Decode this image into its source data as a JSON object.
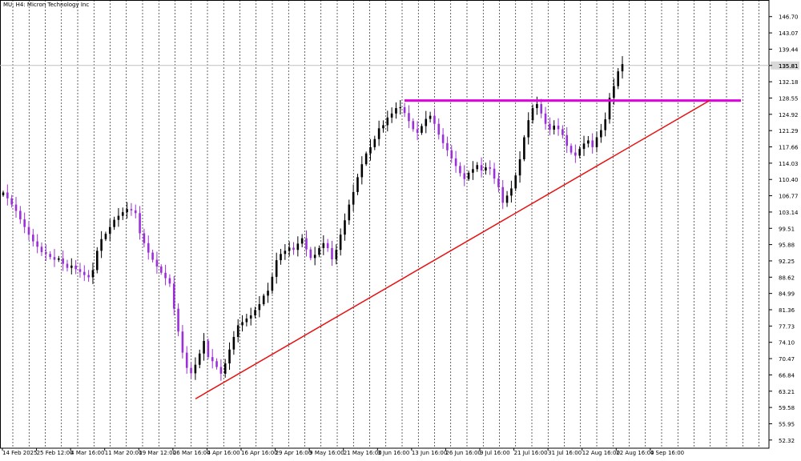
{
  "symbol_title": "MU, H4:  Micron Technology Inc",
  "colors": {
    "background": "#ffffff",
    "bull_candle": "#000000",
    "bear_candle": "#9b30d9",
    "grid": "#000000",
    "resistance": "#e000e0",
    "trendline": "#e81010",
    "price_line": "#c0c0c0"
  },
  "chart_data": {
    "type": "candlestick",
    "timeframe": "H4",
    "title": "MU, H4:  Micron Technology Inc",
    "grid": "vertical dotted",
    "ylim": [
      50.5,
      150.4
    ],
    "y_ticks": [
      "146.70",
      "143.07",
      "139.44",
      "135.81",
      "132.18",
      "128.55",
      "124.92",
      "121.29",
      "117.66",
      "114.03",
      "110.40",
      "106.77",
      "103.14",
      "99.51",
      "95.88",
      "92.25",
      "88.62",
      "84.99",
      "81.36",
      "77.73",
      "74.10",
      "70.47",
      "66.84",
      "63.21",
      "59.58",
      "55.95",
      "52.32"
    ],
    "x_ticks": [
      "14 Feb 2025",
      "25 Feb 12:00",
      "4 Mar 16:00",
      "11 Mar 20:00",
      "19 Mar 12:00",
      "26 Mar 16:00",
      "4 Apr 16:00",
      "16 Apr 16:00",
      "29 Apr 16:00",
      "9 May 16:00",
      "21 May 16:00",
      "3 Jun 16:00",
      "13 Jun 16:00",
      "26 Jun 16:00",
      "9 Jul 16:00",
      "21 Jul 16:00",
      "31 Jul 16:00",
      "12 Aug 16:00",
      "22 Aug 16:00",
      "4 Sep 16:00"
    ],
    "current_price": "135.81",
    "close_series": [
      107.5,
      106.2,
      104.8,
      103.4,
      101.5,
      99.8,
      98.1,
      96.6,
      95.4,
      94.2,
      93.8,
      93.1,
      92.5,
      92.8,
      91.6,
      90.7,
      91.2,
      90.4,
      89.8,
      89.1,
      88.6,
      90.2,
      94.5,
      97.1,
      98.3,
      99.8,
      101.4,
      102.3,
      103.1,
      103.8,
      103.5,
      102.9,
      98.4,
      96.2,
      94.1,
      92.5,
      91.0,
      89.6,
      88.4,
      87.2,
      81.6,
      76.5,
      71.8,
      68.4,
      67.2,
      69.1,
      71.6,
      74.4,
      70.8,
      69.9,
      68.6,
      67.1,
      69.4,
      72.5,
      75.3,
      77.9,
      78.6,
      79.4,
      80.1,
      81.3,
      82.6,
      84.5,
      85.6,
      88.7,
      92.4,
      93.8,
      94.5,
      95.2,
      94.7,
      96.1,
      97.3,
      94.8,
      92.9,
      93.6,
      95.1,
      96.2,
      95.1,
      92.6,
      94.7,
      98.1,
      101.3,
      104.8,
      107.6,
      110.9,
      113.8,
      116.2,
      117.6,
      119.4,
      121.8,
      122.5,
      124.2,
      125.1,
      126.3,
      126.5,
      125.2,
      123.4,
      121.6,
      120.8,
      122.3,
      123.9,
      124.6,
      122.8,
      120.4,
      118.5,
      116.9,
      115.1,
      113.4,
      111.8,
      110.5,
      111.9,
      112.7,
      113.6,
      112.4,
      113.1,
      112.8,
      110.6,
      108.7,
      105.2,
      106.8,
      108.4,
      111.3,
      114.9,
      119.8,
      123.6,
      126.3,
      127.2,
      125.1,
      122.8,
      121.5,
      122.4,
      121.6,
      120.3,
      117.9,
      116.4,
      115.7,
      117.2,
      118.4,
      119.1,
      117.6,
      119.8,
      121.4,
      123.8,
      128.6,
      131.2,
      134.5,
      136.1
    ]
  }
}
